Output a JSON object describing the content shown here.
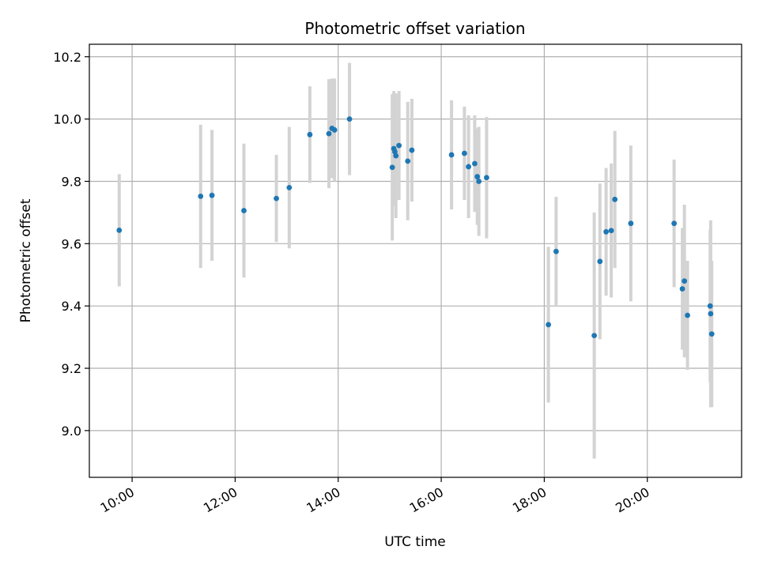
{
  "chart_data": {
    "type": "scatter",
    "title": "Photometric offset variation",
    "xlabel": "UTC time",
    "ylabel": "Photometric offset",
    "x_unit": "hours (UTC)",
    "xlim": [
      9.17,
      21.83
    ],
    "ylim": [
      8.85,
      10.24
    ],
    "xticks": [
      10,
      12,
      14,
      16,
      18,
      20
    ],
    "xtick_labels": [
      "10:00",
      "12:00",
      "14:00",
      "16:00",
      "18:00",
      "20:00"
    ],
    "yticks": [
      9.0,
      9.2,
      9.4,
      9.6,
      9.8,
      10.0,
      10.2
    ],
    "ytick_labels": [
      "9.0",
      "9.2",
      "9.4",
      "9.6",
      "9.8",
      "10.0",
      "10.2"
    ],
    "grid": true,
    "marker_color": "#1f77b4",
    "errorbar_color": "#d3d3d3",
    "points": [
      {
        "x": 9.75,
        "y": 9.643,
        "err": 0.18
      },
      {
        "x": 11.33,
        "y": 9.752,
        "err": 0.23
      },
      {
        "x": 11.55,
        "y": 9.755,
        "err": 0.21
      },
      {
        "x": 12.17,
        "y": 9.706,
        "err": 0.215
      },
      {
        "x": 12.8,
        "y": 9.745,
        "err": 0.14
      },
      {
        "x": 13.05,
        "y": 9.78,
        "err": 0.195
      },
      {
        "x": 13.45,
        "y": 9.95,
        "err": 0.155
      },
      {
        "x": 13.82,
        "y": 9.953,
        "err": 0.175
      },
      {
        "x": 13.88,
        "y": 9.97,
        "err": 0.16
      },
      {
        "x": 13.93,
        "y": 9.965,
        "err": 0.165
      },
      {
        "x": 14.22,
        "y": 10.0,
        "err": 0.18
      },
      {
        "x": 15.05,
        "y": 9.845,
        "err": 0.235
      },
      {
        "x": 15.08,
        "y": 9.905,
        "err": 0.185
      },
      {
        "x": 15.1,
        "y": 9.895,
        "err": 0.165
      },
      {
        "x": 15.12,
        "y": 9.882,
        "err": 0.2
      },
      {
        "x": 15.18,
        "y": 9.915,
        "err": 0.175
      },
      {
        "x": 15.35,
        "y": 9.865,
        "err": 0.19
      },
      {
        "x": 15.43,
        "y": 9.9,
        "err": 0.165
      },
      {
        "x": 16.2,
        "y": 9.885,
        "err": 0.175
      },
      {
        "x": 16.45,
        "y": 9.89,
        "err": 0.15
      },
      {
        "x": 16.53,
        "y": 9.847,
        "err": 0.165
      },
      {
        "x": 16.65,
        "y": 9.857,
        "err": 0.155
      },
      {
        "x": 16.7,
        "y": 9.815,
        "err": 0.155
      },
      {
        "x": 16.73,
        "y": 9.8,
        "err": 0.175
      },
      {
        "x": 16.88,
        "y": 9.812,
        "err": 0.195
      },
      {
        "x": 18.08,
        "y": 9.34,
        "err": 0.25
      },
      {
        "x": 18.23,
        "y": 9.575,
        "err": 0.175
      },
      {
        "x": 18.97,
        "y": 9.305,
        "err": 0.395
      },
      {
        "x": 19.08,
        "y": 9.543,
        "err": 0.25
      },
      {
        "x": 19.2,
        "y": 9.638,
        "err": 0.205
      },
      {
        "x": 19.3,
        "y": 9.642,
        "err": 0.215
      },
      {
        "x": 19.37,
        "y": 9.742,
        "err": 0.22
      },
      {
        "x": 19.68,
        "y": 9.665,
        "err": 0.25
      },
      {
        "x": 20.52,
        "y": 9.665,
        "err": 0.205
      },
      {
        "x": 20.68,
        "y": 9.455,
        "err": 0.195
      },
      {
        "x": 20.72,
        "y": 9.48,
        "err": 0.245
      },
      {
        "x": 20.78,
        "y": 9.37,
        "err": 0.175
      },
      {
        "x": 21.22,
        "y": 9.4,
        "err": 0.245
      },
      {
        "x": 21.23,
        "y": 9.375,
        "err": 0.3
      },
      {
        "x": 21.25,
        "y": 9.31,
        "err": 0.235
      }
    ]
  }
}
